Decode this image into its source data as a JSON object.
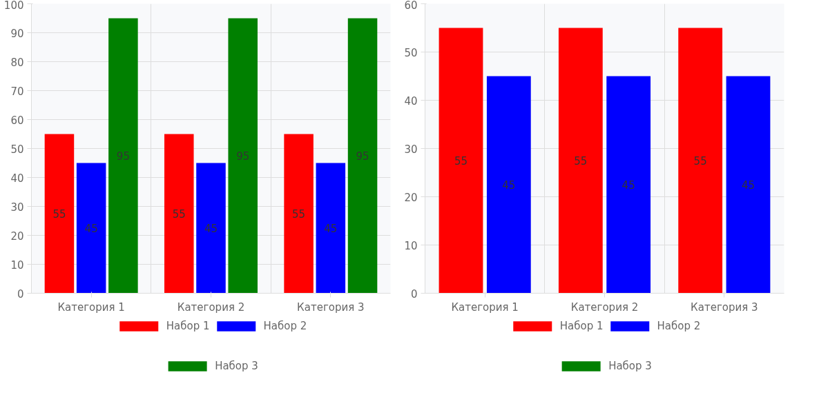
{
  "chart_data": [
    {
      "type": "bar",
      "categories": [
        "Категория 1",
        "Категория 2",
        "Категория 3"
      ],
      "ylim": [
        0,
        100
      ],
      "yticks": [
        0,
        10,
        20,
        30,
        40,
        50,
        60,
        70,
        80,
        90,
        100
      ],
      "grid": true,
      "legend": "bottom",
      "data_labels": true,
      "series": [
        {
          "name": "Набор 1",
          "color": "#ff0000",
          "values": [
            55,
            55,
            55
          ]
        },
        {
          "name": "Набор 2",
          "color": "#0000ff",
          "values": [
            45,
            45,
            45
          ]
        },
        {
          "name": "Набор 3",
          "color": "#008000",
          "values": [
            95,
            95,
            95
          ]
        }
      ]
    },
    {
      "type": "bar",
      "categories": [
        "Категория 1",
        "Категория 2",
        "Категория 3"
      ],
      "ylim": [
        0,
        60
      ],
      "yticks": [
        0,
        10,
        20,
        30,
        40,
        50,
        60
      ],
      "grid": true,
      "legend": "bottom",
      "data_labels": true,
      "series": [
        {
          "name": "Набор 1",
          "color": "#ff0000",
          "values": [
            55,
            55,
            55
          ]
        },
        {
          "name": "Набор 2",
          "color": "#0000ff",
          "values": [
            45,
            45,
            45
          ]
        },
        {
          "name": "Набор 3",
          "color": "#008000",
          "values": [
            null,
            null,
            null
          ]
        }
      ]
    }
  ]
}
